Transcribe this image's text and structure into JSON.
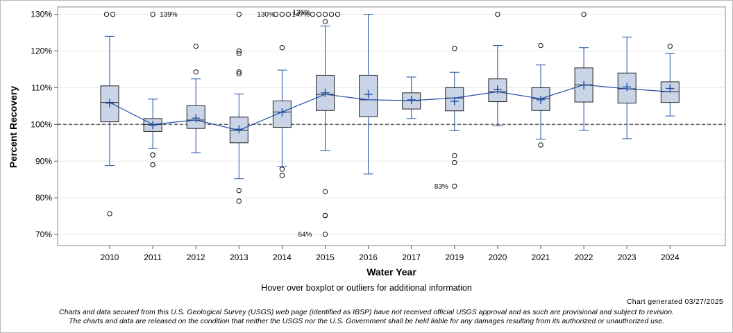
{
  "chart_data": {
    "type": "boxplot",
    "ylabel": "Percent Recovery",
    "xlabel": "Water Year",
    "ylim": [
      67,
      132
    ],
    "yticks": [
      70,
      80,
      90,
      100,
      110,
      120,
      130
    ],
    "ytick_labels": [
      "70%",
      "80%",
      "90%",
      "100%",
      "110%",
      "120%",
      "130%"
    ],
    "reference_line": 100,
    "grid": "horizontal",
    "categories": [
      "2010",
      "2011",
      "2012",
      "2013",
      "2014",
      "2015",
      "2016",
      "2017",
      "2019",
      "2020",
      "2021",
      "2022",
      "2023",
      "2024"
    ],
    "boxes": [
      {
        "year": "2010",
        "q1": 100.7,
        "median": 106.0,
        "q3": 110.5,
        "wlow": 88.8,
        "whigh": 124.0,
        "mean": 105.8,
        "outliers": [
          75.7,
          130,
          130
        ]
      },
      {
        "year": "2011",
        "q1": 98.1,
        "median": 100.0,
        "q3": 101.6,
        "wlow": 93.4,
        "whigh": 106.9,
        "mean": 99.8,
        "outliers": [
          91.7,
          91.7,
          89.0,
          89.0,
          130
        ]
      },
      {
        "year": "2012",
        "q1": 98.9,
        "median": 101.2,
        "q3": 105.1,
        "wlow": 92.3,
        "whigh": 112.4,
        "mean": 101.7,
        "outliers": [
          121.3,
          114.3
        ]
      },
      {
        "year": "2013",
        "q1": 95.0,
        "median": 98.4,
        "q3": 102.0,
        "wlow": 85.2,
        "whigh": 108.3,
        "mean": 98.7,
        "outliers": [
          120.0,
          119.3,
          114.3,
          113.8,
          82.0,
          79.1,
          130
        ]
      },
      {
        "year": "2014",
        "q1": 99.2,
        "median": 103.4,
        "q3": 106.4,
        "wlow": 88.5,
        "whigh": 114.8,
        "mean": 103.3,
        "outliers": [
          120.9,
          87.8,
          86.1,
          130,
          130,
          130
        ]
      },
      {
        "year": "2015",
        "q1": 103.8,
        "median": 108.2,
        "q3": 113.4,
        "wlow": 92.9,
        "whigh": 126.8,
        "mean": 108.6,
        "outliers": [
          128.0,
          81.7,
          75.2,
          75.2,
          70.1,
          130,
          130,
          130,
          130,
          130
        ]
      },
      {
        "year": "2016",
        "q1": 102.1,
        "median": 106.7,
        "q3": 113.4,
        "wlow": 86.5,
        "whigh": 130.0,
        "mean": 108.2,
        "outliers": []
      },
      {
        "year": "2017",
        "q1": 104.2,
        "median": 106.5,
        "q3": 108.6,
        "wlow": 101.6,
        "whigh": 112.9,
        "mean": 106.7,
        "outliers": []
      },
      {
        "year": "2019",
        "q1": 103.7,
        "median": 107.2,
        "q3": 110.0,
        "wlow": 98.3,
        "whigh": 114.2,
        "mean": 106.3,
        "outliers": [
          120.7,
          91.5,
          89.6,
          83.2
        ]
      },
      {
        "year": "2020",
        "q1": 106.2,
        "median": 108.9,
        "q3": 112.4,
        "wlow": 99.6,
        "whigh": 121.5,
        "mean": 109.5,
        "outliers": [
          130
        ]
      },
      {
        "year": "2021",
        "q1": 103.8,
        "median": 107.0,
        "q3": 110.0,
        "wlow": 96.0,
        "whigh": 116.2,
        "mean": 106.7,
        "outliers": [
          121.5,
          94.4
        ]
      },
      {
        "year": "2022",
        "q1": 106.1,
        "median": 110.8,
        "q3": 115.4,
        "wlow": 98.4,
        "whigh": 120.9,
        "mean": 110.7,
        "outliers": [
          130
        ]
      },
      {
        "year": "2023",
        "q1": 105.8,
        "median": 109.7,
        "q3": 114.0,
        "wlow": 96.1,
        "whigh": 123.8,
        "mean": 110.2,
        "outliers": []
      },
      {
        "year": "2024",
        "q1": 106.0,
        "median": 108.9,
        "q3": 111.6,
        "wlow": 102.3,
        "whigh": 119.3,
        "mean": 109.8,
        "outliers": [
          121.3
        ]
      }
    ],
    "annotations": [
      {
        "text": "139%",
        "year": "2011"
      },
      {
        "text": "130%",
        "year": "2013"
      },
      {
        "text": "147%",
        "year": "2014"
      },
      {
        "text": "135%",
        "year": "2015"
      },
      {
        "text": "83%",
        "year": "2019"
      },
      {
        "text": "64%",
        "year": "2015"
      }
    ],
    "median_line_color": "#1f4ea8",
    "box_fill": "#c9d4e6"
  },
  "footer": {
    "hover_text": "Hover over boxplot or outliers for additional information",
    "generated": "Chart generated 03/27/2025",
    "disclaimer_1": "Charts and data secured from this U.S. Geological Survey (USGS) web page (identified as IBSP) have not received official USGS approval and as such are provisional and subject to revision.",
    "disclaimer_2": "The charts and data are released on the condition that neither the USGS nor the U.S. Government shall be held liable for any damages resulting from its authorized or unauthorized use."
  }
}
